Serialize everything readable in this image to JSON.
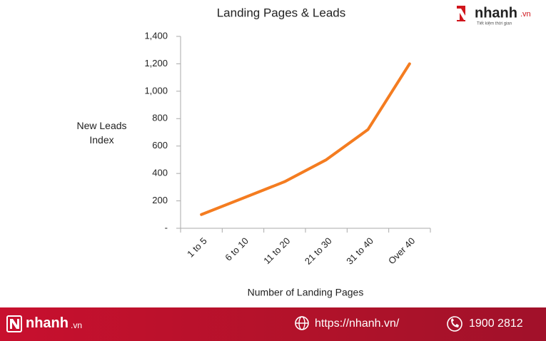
{
  "chart_data": {
    "type": "line",
    "title": "Landing Pages & Leads",
    "x_label": "Number of Landing Pages",
    "y_label": "New Leads Index",
    "categories": [
      "1 to 5",
      "6 to 10",
      "11 to 20",
      "21 to 30",
      "31 to 40",
      "Over 40"
    ],
    "series": [
      {
        "name": "New Leads Index",
        "color": "#f47c20",
        "values": [
          100,
          220,
          340,
          500,
          720,
          1200
        ]
      }
    ],
    "ylim": [
      0,
      1400
    ],
    "yticks": [
      {
        "value": 0,
        "label": "-"
      },
      200,
      400,
      600,
      800,
      {
        "value": 1000,
        "label": "1,000"
      },
      {
        "value": 1200,
        "label": "1,200"
      },
      {
        "value": 1400,
        "label": "1,400"
      }
    ],
    "grid": false
  },
  "branding": {
    "logo": "nhanh",
    "logo_suffix": ".vn",
    "tagline": "Tiết kiệm thời gian",
    "website": "https://nhanh.vn/",
    "phone": "1900 2812"
  }
}
